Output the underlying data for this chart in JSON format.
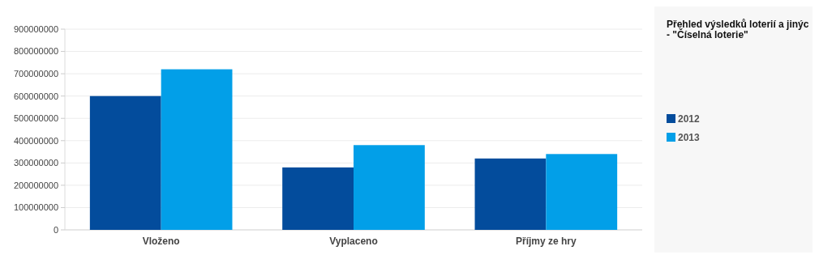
{
  "chart_data": {
    "type": "bar",
    "title": "Přehled výsledků loterií a jinýc\n- \"Číselná loterie\"",
    "categories": [
      "Vloženo",
      "Vyplaceno",
      "Příjmy ze hry"
    ],
    "series": [
      {
        "name": "2012",
        "color": "#034c9c",
        "values": [
          600000000,
          280000000,
          320000000
        ]
      },
      {
        "name": "2013",
        "color": "#029fe8",
        "values": [
          720000000,
          380000000,
          340000000
        ]
      }
    ],
    "ylim": [
      0,
      900000000
    ],
    "yticks": [
      0,
      100000000,
      200000000,
      300000000,
      400000000,
      500000000,
      600000000,
      700000000,
      800000000,
      900000000
    ],
    "grid": "y",
    "legend": "right"
  }
}
